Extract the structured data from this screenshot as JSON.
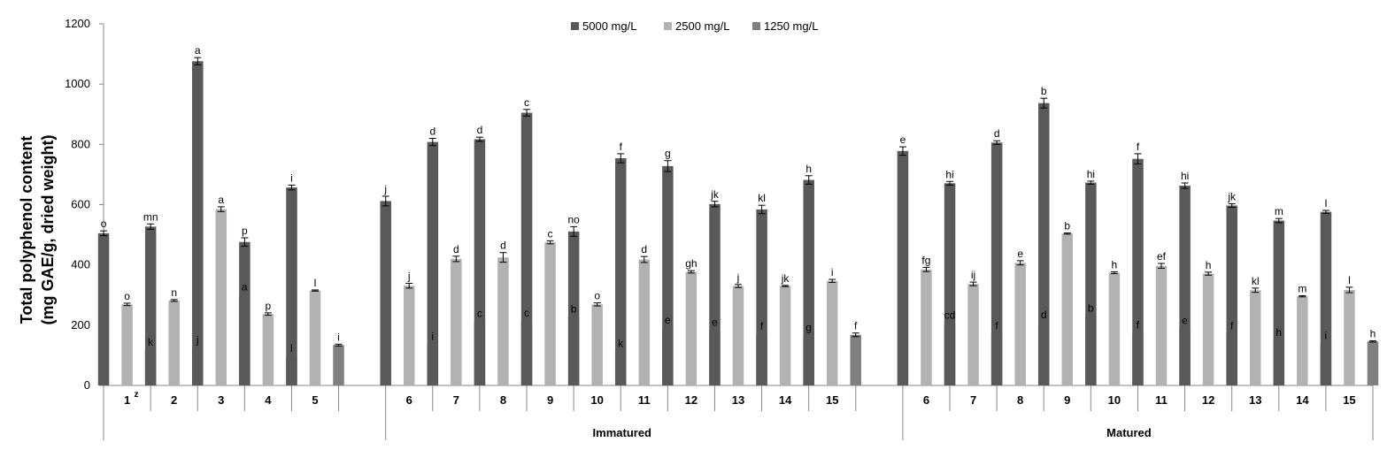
{
  "chart_data": {
    "type": "bar",
    "ylabel_line1": "Total polyphenol content",
    "ylabel_line2": "(mg GAE/g, dried weight)",
    "ylim": [
      0,
      1200
    ],
    "yticks": [
      "0",
      "200",
      "400",
      "600",
      "800",
      "1000",
      "1200"
    ],
    "grid": false,
    "legend_position": "top-center",
    "colors": [
      "#595959",
      "#b2b2b2",
      "#7f7f7f"
    ],
    "superscript_note": "z",
    "groups": [
      {
        "label": "",
        "categories": [
          "1",
          "2",
          "3",
          "4",
          "5"
        ]
      },
      {
        "label": "Immatured",
        "categories": [
          "6",
          "7",
          "8",
          "9",
          "10",
          "11",
          "12",
          "13",
          "14",
          "15"
        ]
      },
      {
        "label": "Matured",
        "categories": [
          "6",
          "7",
          "8",
          "9",
          "10",
          "11",
          "12",
          "13",
          "14",
          "15"
        ]
      }
    ],
    "series": [
      {
        "name": "5000 mg/L",
        "values": [
          505,
          527,
          1076,
          476,
          657,
          612,
          808,
          817,
          905,
          511,
          754,
          728,
          602,
          584,
          682,
          778,
          671,
          806,
          937,
          673,
          752,
          663,
          597,
          547,
          576
        ],
        "errors": [
          8,
          9,
          12,
          14,
          8,
          16,
          12,
          7,
          11,
          16,
          15,
          18,
          9,
          14,
          14,
          14,
          6,
          6,
          16,
          5,
          17,
          9,
          6,
          7,
          5
        ],
        "letters": [
          "o",
          "mn",
          "a",
          "p",
          "i",
          "j",
          "d",
          "d",
          "c",
          "no",
          "f",
          "g",
          "jk",
          "kl",
          "h",
          "e",
          "hi",
          "d",
          "b",
          "hi",
          "f",
          "hi",
          "jk",
          "m",
          "l"
        ]
      },
      {
        "name": "2500 mg/L",
        "values": [
          269,
          282,
          585,
          237,
          315,
          331,
          420,
          425,
          475,
          269,
          418,
          377,
          330,
          330,
          347,
          385,
          337,
          407,
          504,
          374,
          397,
          371,
          316,
          296,
          317
        ],
        "errors": [
          4,
          3,
          8,
          4,
          2,
          8,
          9,
          16,
          5,
          5,
          10,
          4,
          5,
          2,
          5,
          7,
          6,
          7,
          2,
          3,
          8,
          5,
          7,
          2,
          9
        ],
        "letters": [
          "o",
          "n",
          "a",
          "p",
          "l",
          "j",
          "d",
          "d",
          "c",
          "o",
          "d",
          "gh",
          "j",
          "jk",
          "i",
          "fg",
          "ij",
          "e",
          "b",
          "h",
          "ef",
          "h",
          "kl",
          "m",
          "l"
        ]
      },
      {
        "name": "1250 mg/L",
        "values": [
          118,
          126,
          297,
          97,
          134,
          137,
          212,
          212,
          228,
          114,
          188,
          183,
          167,
          160,
          168,
          206,
          172,
          203,
          230,
          172,
          189,
          171,
          149,
          138,
          146
        ],
        "errors": [
          2,
          2,
          6,
          3,
          3,
          2,
          3,
          5,
          3,
          2,
          5,
          3,
          6,
          8,
          6,
          4,
          3,
          8,
          3,
          5,
          3,
          4,
          3,
          4,
          2
        ],
        "letters": [
          "k",
          "j",
          "a",
          "l",
          "i",
          "i",
          "c",
          "c",
          "b",
          "k",
          "e",
          "e",
          "f",
          "g",
          "f",
          "cd",
          "f",
          "d",
          "b",
          "f",
          "e",
          "f",
          "h",
          "i",
          "h"
        ]
      }
    ]
  }
}
